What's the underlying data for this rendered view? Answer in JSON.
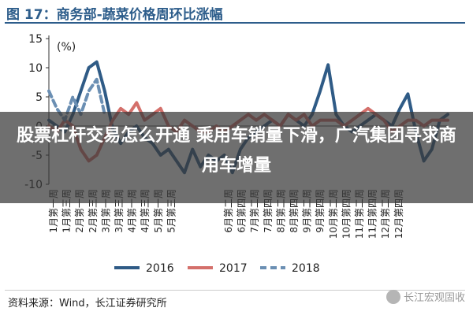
{
  "chart_data": {
    "type": "line",
    "title": "图 17：商务部-蔬菜价格周环比涨幅",
    "ylabel": "(%)",
    "ylim": [
      -10,
      15
    ],
    "yticks": [
      15,
      10,
      5,
      0,
      -5,
      -10
    ],
    "grid": false,
    "legend_position": "bottom",
    "categories": [
      "1月第一周",
      "1月第三周",
      "2月第一周",
      "2月第三周",
      "3月第一周",
      "3月第三周",
      "4月第一周",
      "4月第三周",
      "5月第一周",
      "5月第三周",
      "6月第二周",
      "6月第四周",
      "7月第二周",
      "7月第四周",
      "8月第二周",
      "8月第四周",
      "9月第二周",
      "9月第四周",
      "10月第二周",
      "10月第四周",
      "11月第二周",
      "11月第四周",
      "12月第二周",
      "12月第四周"
    ],
    "x": [
      0,
      1,
      2,
      3,
      4,
      5,
      6,
      7,
      8,
      9,
      10,
      11,
      12,
      13,
      14,
      15,
      16,
      17,
      18,
      19,
      20,
      21,
      22,
      23,
      24,
      25,
      26,
      27,
      28,
      29,
      30,
      31,
      32,
      33,
      34,
      35,
      36,
      37,
      38,
      39,
      40,
      41,
      42,
      43,
      44,
      45,
      46,
      47,
      48,
      49,
      50
    ],
    "series": [
      {
        "name": "2016",
        "color": "#2f5b86",
        "style": "solid",
        "values": [
          1,
          0,
          -1,
          2,
          6,
          10,
          11,
          6,
          -0.5,
          -3,
          -1,
          0,
          -2,
          -3,
          -5,
          -4,
          -6,
          -8,
          -4,
          -7,
          -5,
          -6,
          -5,
          -8,
          -4,
          -2,
          -1,
          0,
          1,
          0,
          2,
          1,
          0,
          2,
          6,
          10.5,
          2,
          0,
          -1,
          0,
          1,
          2,
          1,
          0,
          3,
          5.5,
          -1,
          -6,
          -4,
          1,
          2
        ]
      },
      {
        "name": "2017",
        "color": "#d4706b",
        "style": "solid",
        "values": [
          0,
          -1,
          1,
          0,
          -4,
          -6,
          -5,
          -2,
          1,
          3,
          2,
          4,
          1,
          2,
          3,
          0,
          -1,
          1,
          0,
          -1,
          -1,
          0,
          -1,
          0,
          1,
          2,
          1,
          2,
          1,
          0,
          2,
          1,
          2,
          0,
          1,
          1,
          1,
          0,
          1,
          2,
          3,
          2,
          1,
          -1,
          0,
          1,
          1,
          0,
          1,
          1,
          1
        ]
      },
      {
        "name": "2018",
        "color": "#6b8fb3",
        "style": "dashed",
        "values": [
          6,
          3,
          1,
          5,
          2,
          6,
          8,
          2,
          null,
          null,
          null,
          null,
          null,
          null,
          null,
          null,
          null,
          null,
          null,
          null,
          null,
          null,
          null,
          null,
          null,
          null,
          null,
          null,
          null,
          null,
          null,
          null,
          null,
          null,
          null,
          null,
          null,
          null,
          null,
          null,
          null,
          null,
          null,
          null,
          null,
          null,
          null,
          null,
          null,
          null,
          null
        ]
      }
    ],
    "legend": [
      {
        "name": "2016",
        "color": "#2f5b86",
        "style": "solid"
      },
      {
        "name": "2017",
        "color": "#d4706b",
        "style": "solid"
      },
      {
        "name": "2018",
        "color": "#6b8fb3",
        "style": "dashed"
      }
    ]
  },
  "overlay_headline": "股票杠杆交易怎么开通 乘用车销量下滑，广汽集团寻求商用车增量",
  "source_text": "资料来源：Wind，长江证券研究所",
  "watermark_text": "长江宏观固收"
}
